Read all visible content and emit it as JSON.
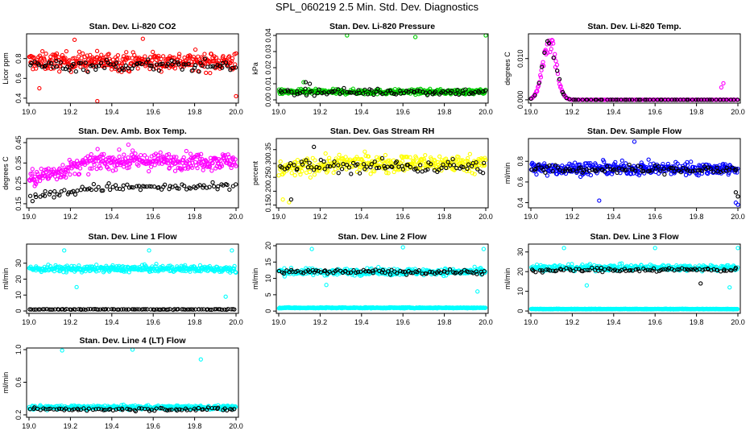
{
  "page_title": "SPL_060219  2.5 Min. Std. Dev. Diagnostics",
  "colors": {
    "black": "#000000",
    "red": "#ff0000",
    "green": "#00cc00",
    "magenta": "#ff00ff",
    "yellow": "#ffff00",
    "blue": "#0000ff",
    "cyan": "#00ffff"
  },
  "chart_data": [
    {
      "id": "co2",
      "type": "scatter",
      "title": "Stan. Dev. Li-820 CO2",
      "ylabel": "Licor ppm",
      "xlim": [
        19.0,
        20.0
      ],
      "ylim": [
        0.35,
        1.05
      ],
      "x_ticks": [
        19.0,
        19.2,
        19.4,
        19.6,
        19.8,
        20.0
      ],
      "y_ticks": [
        0.4,
        0.6,
        0.8
      ],
      "y_tick_labels": [
        "0.4",
        "0.6",
        "0.8"
      ],
      "series": [
        {
          "name": "primary",
          "color": "#ff0000",
          "n": 360,
          "center": 0.77,
          "spread": 0.09,
          "rise": 0,
          "outliers": [
            [
              19.33,
              0.37
            ],
            [
              19.22,
              0.99
            ],
            [
              19.55,
              1.0
            ],
            [
              20.0,
              0.42
            ],
            [
              19.05,
              0.5
            ]
          ]
        },
        {
          "name": "secondary",
          "color": "#000000",
          "n": 90,
          "center": 0.73,
          "spread": 0.06,
          "rise": 0,
          "outliers": []
        }
      ]
    },
    {
      "id": "pressure",
      "type": "scatter",
      "title": "Stan. Dev. Li-820 Pressure",
      "ylabel": "kPa",
      "xlim": [
        19.0,
        20.0
      ],
      "ylim": [
        -0.002,
        0.041
      ],
      "x_ticks": [
        19.0,
        19.2,
        19.4,
        19.6,
        19.8,
        20.0
      ],
      "y_ticks": [
        0.0,
        0.01,
        0.02,
        0.03,
        0.04
      ],
      "y_tick_labels": [
        "0.00",
        "0.01",
        "0.02",
        "0.03",
        "0.04"
      ],
      "series": [
        {
          "name": "primary",
          "color": "#00cc00",
          "n": 360,
          "center": 0.005,
          "spread": 0.0015,
          "rise": 0,
          "outliers": [
            [
              19.33,
              0.04
            ],
            [
              19.66,
              0.039
            ],
            [
              20.0,
              0.04
            ],
            [
              19.12,
              0.011
            ]
          ]
        },
        {
          "name": "secondary",
          "color": "#000000",
          "n": 90,
          "center": 0.005,
          "spread": 0.002,
          "rise": 0,
          "outliers": [
            [
              19.13,
              0.011
            ],
            [
              19.15,
              0.01
            ]
          ]
        }
      ]
    },
    {
      "id": "licor-temp",
      "type": "scatter",
      "title": "Stan. Dev. Li-820 Temp.",
      "ylabel": "degrees C",
      "xlim": [
        19.0,
        20.0
      ],
      "ylim": [
        -0.0008,
        0.016
      ],
      "x_ticks": [
        19.0,
        19.2,
        19.4,
        19.6,
        19.8,
        20.0
      ],
      "y_ticks": [
        0.0,
        0.01
      ],
      "y_tick_labels": [
        "0.000",
        "0.010"
      ],
      "series": [
        {
          "name": "primary",
          "color": "#ff00ff",
          "n": 300,
          "center": 0.0,
          "spread": 0.0,
          "rise": 0,
          "peak": {
            "x": 19.09,
            "height": 0.0155,
            "width": 0.045
          },
          "outliers": [
            [
              19.92,
              0.003
            ],
            [
              19.93,
              0.004
            ]
          ]
        },
        {
          "name": "secondary",
          "color": "#000000",
          "n": 70,
          "center": 0.0,
          "spread": 0.0,
          "rise": 0,
          "peak": {
            "x": 19.09,
            "height": 0.0155,
            "width": 0.045
          },
          "outliers": []
        }
      ]
    },
    {
      "id": "box-temp",
      "type": "scatter",
      "title": "Stan. Dev. Amb. Box Temp.",
      "ylabel": "degrees C",
      "xlim": [
        19.0,
        20.0
      ],
      "ylim": [
        0.13,
        0.47
      ],
      "x_ticks": [
        19.0,
        19.2,
        19.4,
        19.6,
        19.8,
        20.0
      ],
      "y_ticks": [
        0.15,
        0.25,
        0.35,
        0.45
      ],
      "y_tick_labels": [
        "0.15",
        "0.25",
        "0.35",
        "0.45"
      ],
      "series": [
        {
          "name": "primary",
          "color": "#ff00ff",
          "n": 360,
          "center": 0.27,
          "spread": 0.04,
          "rise": 0.09,
          "outliers": [
            [
              19.48,
              0.44
            ]
          ]
        },
        {
          "name": "secondary",
          "color": "#000000",
          "n": 90,
          "center": 0.18,
          "spread": 0.02,
          "rise": 0.05,
          "outliers": []
        }
      ]
    },
    {
      "id": "rh",
      "type": "scatter",
      "title": "Stan. Dev. Gas Stream RH",
      "ylabel": "percent",
      "xlim": [
        19.0,
        20.0
      ],
      "ylim": [
        0.14,
        0.39
      ],
      "x_ticks": [
        19.0,
        19.2,
        19.4,
        19.6,
        19.8,
        20.0
      ],
      "y_ticks": [
        0.15,
        0.2,
        0.25,
        0.3,
        0.35
      ],
      "y_tick_labels": [
        "0.15",
        "0.20",
        "0.25",
        "0.30",
        "0.35"
      ],
      "series": [
        {
          "name": "primary",
          "color": "#ffff00",
          "n": 360,
          "center": 0.28,
          "spread": 0.03,
          "rise": 0.02,
          "outliers": [
            [
              19.02,
              0.17
            ],
            [
              19.05,
              0.16
            ]
          ]
        },
        {
          "name": "secondary",
          "color": "#000000",
          "n": 90,
          "center": 0.29,
          "spread": 0.025,
          "rise": 0.0,
          "outliers": [
            [
              19.06,
              0.17
            ],
            [
              19.17,
              0.36
            ]
          ]
        }
      ]
    },
    {
      "id": "sample-flow",
      "type": "scatter",
      "title": "Stan. Dev. Sample Flow",
      "ylabel": "ml/min",
      "xlim": [
        19.0,
        20.0
      ],
      "ylim": [
        0.35,
        1.02
      ],
      "x_ticks": [
        19.0,
        19.2,
        19.4,
        19.6,
        19.8,
        20.0
      ],
      "y_ticks": [
        0.4,
        0.6,
        0.8
      ],
      "y_tick_labels": [
        "0.4",
        "0.6",
        "0.8"
      ],
      "series": [
        {
          "name": "primary",
          "color": "#0000ff",
          "n": 360,
          "center": 0.73,
          "spread": 0.06,
          "rise": 0.0,
          "outliers": [
            [
              19.5,
              0.99
            ],
            [
              19.33,
              0.42
            ],
            [
              19.99,
              0.4
            ],
            [
              20.0,
              0.38
            ]
          ]
        },
        {
          "name": "secondary",
          "color": "#000000",
          "n": 90,
          "center": 0.72,
          "spread": 0.04,
          "rise": 0.0,
          "outliers": [
            [
              19.99,
              0.5
            ],
            [
              20.0,
              0.46
            ]
          ]
        }
      ]
    },
    {
      "id": "line1-flow",
      "type": "scatter",
      "title": "Stan. Dev. Line 1 Flow",
      "ylabel": "ml/min",
      "xlim": [
        19.0,
        20.0
      ],
      "ylim": [
        -1.5,
        42
      ],
      "x_ticks": [
        19.0,
        19.2,
        19.4,
        19.6,
        19.8,
        20.0
      ],
      "y_ticks": [
        0,
        10,
        20,
        30
      ],
      "y_tick_labels": [
        "0",
        "10",
        "20",
        "30"
      ],
      "series": [
        {
          "name": "primary",
          "color": "#00ffff",
          "n": 360,
          "center": 26.5,
          "spread": 2.0,
          "rise": 0,
          "outliers": [
            [
              19.17,
              38
            ],
            [
              19.58,
              38
            ],
            [
              19.98,
              38
            ],
            [
              19.23,
              15
            ],
            [
              19.95,
              9
            ]
          ]
        },
        {
          "name": "secondary",
          "color": "#000000",
          "n": 100,
          "center": 1.0,
          "spread": 0.2,
          "rise": 0,
          "outliers": []
        }
      ]
    },
    {
      "id": "line2-flow",
      "type": "scatter",
      "title": "Stan. Dev. Line 2 Flow",
      "ylabel": "ml/min",
      "xlim": [
        19.0,
        20.0
      ],
      "ylim": [
        -0.7,
        20.5
      ],
      "x_ticks": [
        19.0,
        19.2,
        19.4,
        19.6,
        19.8,
        20.0
      ],
      "y_ticks": [
        0,
        5,
        10,
        15,
        20
      ],
      "y_tick_labels": [
        "0",
        "5",
        "10",
        "15",
        "20"
      ],
      "series": [
        {
          "name": "primary",
          "color": "#00ffff",
          "n": 420,
          "center": 1.0,
          "spread": 0.15,
          "rise": 0,
          "outliers": [
            [
              19.16,
              19
            ],
            [
              19.6,
              19.5
            ],
            [
              19.99,
              19
            ],
            [
              19.23,
              8
            ],
            [
              19.96,
              6
            ]
          ]
        },
        {
          "name": "primary-upper",
          "color": "#00ffff",
          "n": 320,
          "center": 12.0,
          "spread": 1.0,
          "rise": 0,
          "outliers": []
        },
        {
          "name": "secondary",
          "color": "#000000",
          "n": 90,
          "center": 12.0,
          "spread": 0.7,
          "rise": 0,
          "outliers": []
        }
      ]
    },
    {
      "id": "line3-flow",
      "type": "scatter",
      "title": "Stan. Dev. Line 3 Flow",
      "ylabel": "ml/min",
      "xlim": [
        19.0,
        20.0
      ],
      "ylim": [
        -1.2,
        34
      ],
      "x_ticks": [
        19.0,
        19.2,
        19.4,
        19.6,
        19.8,
        20.0
      ],
      "y_ticks": [
        0,
        10,
        20,
        30
      ],
      "y_tick_labels": [
        "0",
        "10",
        "20",
        "30"
      ],
      "series": [
        {
          "name": "primary",
          "color": "#00ffff",
          "n": 420,
          "center": 1.0,
          "spread": 0.15,
          "rise": 0,
          "outliers": [
            [
              19.16,
              32
            ],
            [
              19.6,
              32
            ],
            [
              20.0,
              32
            ],
            [
              19.27,
              13
            ],
            [
              19.96,
              12
            ]
          ]
        },
        {
          "name": "primary-upper",
          "color": "#00ffff",
          "n": 320,
          "center": 22.0,
          "spread": 1.5,
          "rise": 0,
          "outliers": []
        },
        {
          "name": "secondary",
          "color": "#000000",
          "n": 90,
          "center": 20.5,
          "spread": 1.0,
          "rise": 0.5,
          "outliers": [
            [
              19.82,
              14
            ]
          ]
        }
      ]
    },
    {
      "id": "line4-flow",
      "type": "scatter",
      "title": "Stan. Dev. Line 4 (LT) Flow",
      "ylabel": "ml/min",
      "xlim": [
        19.0,
        20.0
      ],
      "ylim": [
        0.17,
        1.02
      ],
      "x_ticks": [
        19.0,
        19.2,
        19.4,
        19.6,
        19.8,
        20.0
      ],
      "y_ticks": [
        0.2,
        0.6,
        1.0
      ],
      "y_tick_labels": [
        "0.2",
        "0.6",
        "1.0"
      ],
      "series": [
        {
          "name": "primary",
          "color": "#00ffff",
          "n": 380,
          "center": 0.29,
          "spread": 0.025,
          "rise": 0,
          "outliers": [
            [
              19.16,
              0.99
            ],
            [
              19.5,
              1.0
            ],
            [
              19.83,
              0.88
            ]
          ]
        },
        {
          "name": "secondary",
          "color": "#000000",
          "n": 80,
          "center": 0.27,
          "spread": 0.02,
          "rise": 0,
          "outliers": []
        }
      ]
    }
  ]
}
